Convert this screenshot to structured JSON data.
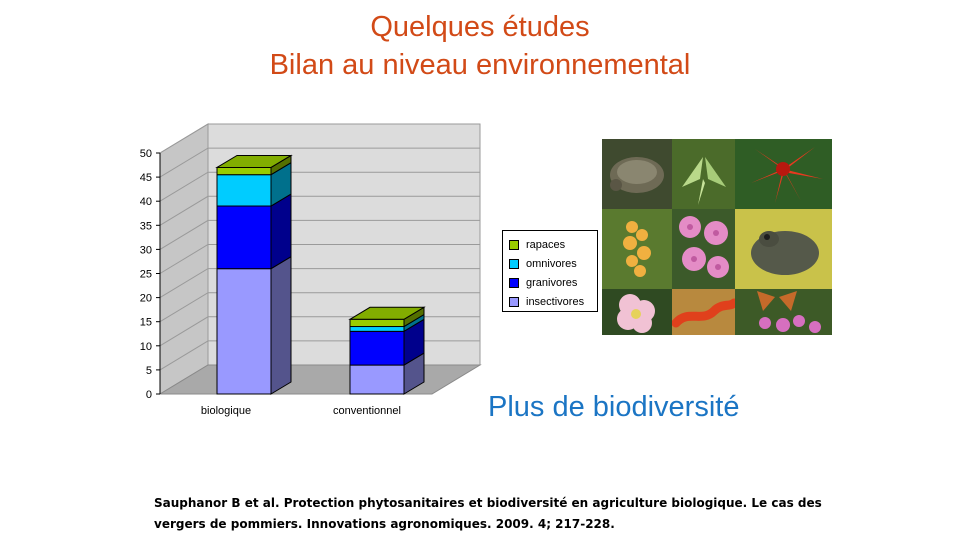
{
  "slide": {
    "title_line1": "Quelques études",
    "title_line2": "Bilan au niveau environnemental",
    "highlight": "Plus de biodiversité",
    "reference": " Sauphanor B et al. Protection phytosanitaires et biodiversité en agriculture biologique. Le cas des vergers de pommiers. Innovations agronomiques. 2009. 4; 217-228.",
    "photos": [
      "turtle",
      "moth",
      "red flower",
      "orchid",
      "pink flowers",
      "frog",
      "rose",
      "salamander",
      "butterfly"
    ]
  },
  "chart_data": {
    "type": "bar",
    "stacked": true,
    "categories": [
      "biologique",
      "conventionnel"
    ],
    "series": [
      {
        "name": "insectivores",
        "color": "#9999ff",
        "values": [
          26,
          6
        ]
      },
      {
        "name": "granivores",
        "color": "#0000ff",
        "values": [
          13,
          7
        ]
      },
      {
        "name": "omnivores",
        "color": "#00ccff",
        "values": [
          6.5,
          1
        ]
      },
      {
        "name": "rapaces",
        "color": "#99cc00",
        "values": [
          1.5,
          1.5
        ]
      }
    ],
    "ylim": [
      0,
      50
    ],
    "yticks": [
      0,
      5,
      10,
      15,
      20,
      25,
      30,
      35,
      40,
      45,
      50
    ],
    "grid": true,
    "legend_position": "right"
  }
}
